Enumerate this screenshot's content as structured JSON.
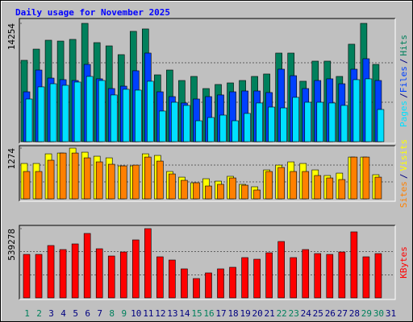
{
  "title": "Daily usage for November 2025",
  "chart_data": [
    {
      "type": "bar",
      "legend_separator": "/",
      "ylim": [
        0,
        14254
      ],
      "yticks": [
        14254
      ],
      "gridlines": [
        4751,
        9503
      ],
      "series": [
        {
          "name": "Hits",
          "color": "#00805c",
          "values": [
            9800,
            11150,
            12220,
            12120,
            12320,
            14254,
            11930,
            11540,
            10480,
            13290,
            13580,
            8050,
            8630,
            7370,
            7860,
            6400,
            6890,
            7080,
            7370,
            7860,
            8150,
            10670,
            10670,
            7280,
            9700,
            9700,
            7860,
            11740,
            14254,
            9310,
            0
          ]
        },
        {
          "name": "Files",
          "color": "#0040ff",
          "values": [
            6010,
            8630,
            7660,
            7470,
            7370,
            9310,
            7570,
            6400,
            6690,
            8540,
            10670,
            6010,
            5430,
            4660,
            5140,
            5430,
            5630,
            6010,
            6110,
            6110,
            5920,
            8730,
            7950,
            6400,
            7370,
            7570,
            6980,
            8730,
            9990,
            7370,
            0
          ]
        },
        {
          "name": "Pages",
          "color": "#00e0ff",
          "values": [
            5140,
            6600,
            6980,
            6790,
            7180,
            7860,
            7370,
            5630,
            6310,
            6210,
            7280,
            3690,
            4750,
            4370,
            2520,
            2910,
            3200,
            2520,
            3400,
            4660,
            4170,
            4070,
            5340,
            4750,
            4750,
            4660,
            4370,
            7470,
            7570,
            3880,
            0
          ]
        }
      ]
    },
    {
      "type": "bar",
      "legend_separator": "/",
      "ylim": [
        0,
        1274
      ],
      "yticks": [
        1274
      ],
      "gridlines": [
        425,
        849
      ],
      "series": [
        {
          "name": "Visits",
          "color": "#ffff00",
          "values": [
            889,
            889,
            1131,
            1151,
            1274,
            1172,
            1071,
            1030,
            828,
            828,
            1131,
            1091,
            687,
            545,
            404,
            505,
            444,
            566,
            364,
            303,
            727,
            848,
            929,
            889,
            727,
            586,
            646,
            1050,
            1050,
            606,
            0
          ]
        },
        {
          "name": "Sites",
          "color": "#ff8000",
          "values": [
            687,
            687,
            970,
            1151,
            1151,
            1030,
            929,
            869,
            828,
            848,
            1050,
            949,
            626,
            465,
            404,
            323,
            364,
            525,
            343,
            222,
            687,
            788,
            687,
            687,
            586,
            525,
            485,
            1050,
            1050,
            545,
            0
          ]
        }
      ]
    },
    {
      "type": "bar",
      "ylim": [
        0,
        539278
      ],
      "yticks": [
        539278
      ],
      "gridlines": [
        179759,
        359519
      ],
      "categories": [
        "1",
        "2",
        "3",
        "4",
        "5",
        "6",
        "7",
        "8",
        "9",
        "10",
        "11",
        "12",
        "13",
        "14",
        "15",
        "16",
        "17",
        "18",
        "19",
        "20",
        "21",
        "22",
        "23",
        "24",
        "25",
        "26",
        "27",
        "28",
        "29",
        "30",
        "31"
      ],
      "category_colors": [
        "#00805c",
        "#00805c",
        "#000080",
        "#000080",
        "#000080",
        "#000080",
        "#000080",
        "#00805c",
        "#00805c",
        "#000080",
        "#000080",
        "#000080",
        "#000080",
        "#000080",
        "#00805c",
        "#00805c",
        "#000080",
        "#000080",
        "#000080",
        "#000080",
        "#000080",
        "#00805c",
        "#00805c",
        "#000080",
        "#000080",
        "#000080",
        "#000080",
        "#000080",
        "#00805c",
        "#00805c",
        "#000080"
      ],
      "series": [
        {
          "name": "KBytes",
          "color": "#ff0000",
          "values": [
            338600,
            338600,
            407600,
            376300,
            420200,
            501700,
            382500,
            326100,
            357400,
            451500,
            539278,
            319800,
            294700,
            225800,
            150500,
            194400,
            225800,
            238300,
            313600,
            301000,
            351200,
            439000,
            313600,
            376300,
            344900,
            338600,
            357400,
            514200,
            319800,
            344900,
            0
          ]
        }
      ]
    }
  ]
}
